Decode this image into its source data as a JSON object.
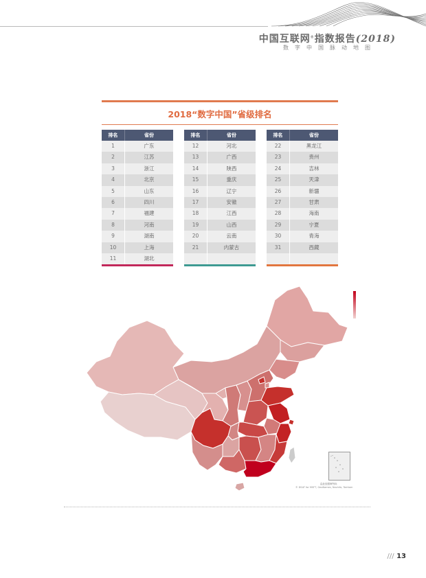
{
  "header": {
    "title_main": "中国互联网",
    "title_reg": "®",
    "title_rest": "指数报告",
    "title_year": "(2018)",
    "subtitle": "数字中国脉动地图"
  },
  "ranking": {
    "title": "2018“数字中国”省级排名",
    "col_rank": "排名",
    "col_province": "省份",
    "accent_colors": [
      "#c2285a",
      "#3e9a92",
      "#e2763f"
    ],
    "tables": [
      [
        [
          "1",
          "广东"
        ],
        [
          "2",
          "江苏"
        ],
        [
          "3",
          "浙江"
        ],
        [
          "4",
          "北京"
        ],
        [
          "5",
          "山东"
        ],
        [
          "6",
          "四川"
        ],
        [
          "7",
          "福建"
        ],
        [
          "8",
          "河南"
        ],
        [
          "9",
          "湖南"
        ],
        [
          "10",
          "上海"
        ],
        [
          "11",
          "湖北"
        ]
      ],
      [
        [
          "12",
          "河北"
        ],
        [
          "13",
          "广西"
        ],
        [
          "14",
          "陕西"
        ],
        [
          "15",
          "重庆"
        ],
        [
          "16",
          "辽宁"
        ],
        [
          "17",
          "安徽"
        ],
        [
          "18",
          "江西"
        ],
        [
          "19",
          "山西"
        ],
        [
          "20",
          "云南"
        ],
        [
          "21",
          "内蒙古"
        ],
        [
          "",
          ""
        ]
      ],
      [
        [
          "22",
          "黑龙江"
        ],
        [
          "23",
          "贵州"
        ],
        [
          "24",
          "吉林"
        ],
        [
          "25",
          "天津"
        ],
        [
          "26",
          "新疆"
        ],
        [
          "27",
          "甘肃"
        ],
        [
          "28",
          "海南"
        ],
        [
          "29",
          "宁夏"
        ],
        [
          "30",
          "青海"
        ],
        [
          "31",
          "西藏"
        ],
        [
          "",
          ""
        ]
      ]
    ]
  },
  "map": {
    "credit_line1": "由此处图审所标",
    "credit_line2": "© DSAT for MSFT, GeoNames, Navinfo, Tomtom",
    "legend_colors": [
      "#c2001a",
      "#f1d2d0"
    ]
  },
  "footer": {
    "page_bars": "///",
    "page_number": "13"
  }
}
